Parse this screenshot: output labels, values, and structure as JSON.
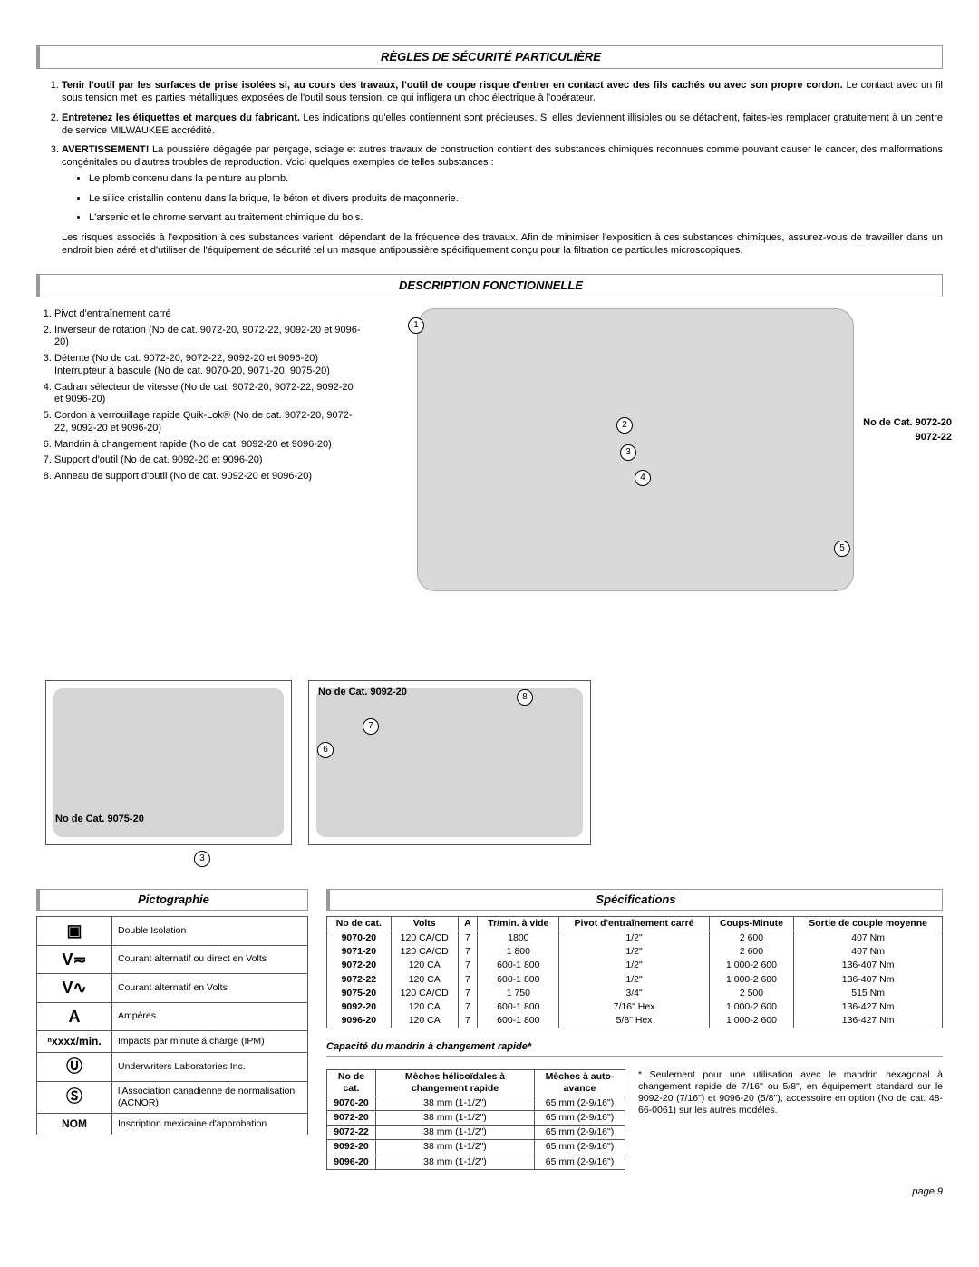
{
  "sections": {
    "safety_title": "RÈGLES DE SÉCURITÉ PARTICULIÈRE",
    "safety": [
      {
        "bold": "Tenir l'outil par les surfaces de prise isolées si, au cours des travaux, l'outil de coupe risque d'entrer en contact avec des fils cachés ou avec son propre cordon.",
        "rest": " Le contact avec un fil sous tension met les parties métalliques exposées de l'outil sous tension, ce qui infligera un choc électrique à l'opérateur."
      },
      {
        "bold": "Entretenez les étiquettes et marques du fabricant.",
        "rest": " Les indications qu'elles contiennent sont précieuses. Si elles deviennent illisibles ou se détachent, faites-les remplacer gratuitement à un centre de service MILWAUKEE accrédité."
      },
      {
        "bold": "AVERTISSEMENT!",
        "rest": " La poussière dégagée par perçage, sciage et autres travaux de construction contient des substances chimiques reconnues comme pouvant causer le cancer, des malformations congénitales ou d'autres troubles de reproduction. Voici quelques exemples de telles substances :",
        "bullets": [
          "Le plomb contenu dans la peinture au plomb.",
          "Le silice cristallin contenu dans la brique, le béton et divers produits de maçonnerie.",
          "L'arsenic et le chrome servant au traitement chimique du bois."
        ],
        "tail": "Les risques associés à l'exposition à ces substances varient, dépendant de la fréquence des travaux. Afin de minimiser l'exposition à ces substances chimiques, assurez-vous de travailler dans un endroit bien aéré et d'utiliser de l'équipement de sécurité tel un masque antipoussière spécifiquement conçu pour la filtration de particules microscopiques."
      }
    ],
    "func_title": "DESCRIPTION FONCTIONNELLE",
    "func_list": [
      "Pivot d'entraînement carré",
      "Inverseur de rotation (No de cat. 9072-20, 9072-22, 9092-20 et 9096-20)",
      "Détente (No de cat. 9072-20, 9072-22, 9092-20 et 9096-20) Interrupteur à bascule (No de cat. 9070-20, 9071-20, 9075-20)",
      "Cadran sélecteur de vitesse (No de cat. 9072-20, 9072-22, 9092-20 et 9096-20)",
      "Cordon à verrouillage rapide Quik-Lok® (No de cat. 9072-20, 9072-22, 9092-20 et 9096-20)",
      "Mandrin à changement rapide (No de cat. 9092-20 et 9096-20)",
      "Support d'outil (No de cat. 9092-20 et 9096-20)",
      "Anneau de support d'outil (No de cat. 9092-20 et 9096-20)"
    ],
    "cat_big_a": "No de Cat. 9072-20",
    "cat_big_b": "9072-22",
    "cat_9092": "No de Cat. 9092-20",
    "cat_9075": "No de Cat. 9075-20",
    "picto_title": "Pictographie",
    "picto": [
      {
        "sym": "▣",
        "desc": "Double Isolation"
      },
      {
        "sym": "V≂",
        "desc": "Courant alternatif ou direct en Volts"
      },
      {
        "sym": "V∿",
        "desc": "Courant alternatif en Volts"
      },
      {
        "sym": "A",
        "desc": "Ampères"
      },
      {
        "sym": "ⁿxxxx/min.",
        "desc": "Impacts par minute á charge (IPM)"
      },
      {
        "sym": "Ⓤ",
        "desc": "Underwriters Laboratories Inc."
      },
      {
        "sym": "Ⓢ",
        "desc": "l'Association canadienne de normalisation (ACNOR)"
      },
      {
        "sym": "NOM",
        "desc": "Inscription mexicaine d'approbation"
      }
    ],
    "spec_title": "Spécifications",
    "spec_headers": [
      "No de cat.",
      "Volts",
      "A",
      "Tr/min. à vide",
      "Pivot d'entraînement carré",
      "Coups-Minute",
      "Sortie de couple moyenne"
    ],
    "spec_rows": [
      [
        "9070-20",
        "120 CA/CD",
        "7",
        "1800",
        "1/2\"",
        "2 600",
        "407 Nm"
      ],
      [
        "9071-20",
        "120 CA/CD",
        "7",
        "1 800",
        "1/2\"",
        "2 600",
        "407 Nm"
      ],
      [
        "9072-20",
        "120 CA",
        "7",
        "600-1 800",
        "1/2\"",
        "1 000-2 600",
        "136-407 Nm"
      ],
      [
        "9072-22",
        "120 CA",
        "7",
        "600-1 800",
        "1/2\"",
        "1 000-2 600",
        "136-407 Nm"
      ],
      [
        "9075-20",
        "120 CA/CD",
        "7",
        "1 750",
        "3/4\"",
        "2 500",
        "515 Nm"
      ],
      [
        "9092-20",
        "120 CA",
        "7",
        "600-1 800",
        "7/16\" Hex",
        "1 000-2 600",
        "136-427 Nm"
      ],
      [
        "9096-20",
        "120 CA",
        "7",
        "600-1 800",
        "5/8\" Hex",
        "1 000-2 600",
        "136-427 Nm"
      ]
    ],
    "chuck_title": "Capacité du mandrin à changement rapide*",
    "chuck_headers": [
      "No de cat.",
      "Mèches hélicoïdales à changement rapide",
      "Mèches à auto-avance"
    ],
    "chuck_rows": [
      [
        "9070-20",
        "38 mm (1-1/2\")",
        "65 mm (2-9/16\")"
      ],
      [
        "9072-20",
        "38 mm (1-1/2\")",
        "65 mm (2-9/16\")"
      ],
      [
        "9072-22",
        "38 mm (1-1/2\")",
        "65 mm (2-9/16\")"
      ],
      [
        "9092-20",
        "38 mm (1-1/2\")",
        "65 mm (2-9/16\")"
      ],
      [
        "9096-20",
        "38 mm (1-1/2\")",
        "65 mm (2-9/16\")"
      ]
    ],
    "footnote": "* Seulement pour une utilisation avec le mandrin hexagonal à changement rapide de 7/16\" ou 5/8\", en équipement standard sur le 9092-20 (7/16\") et 9096-20 (5/8\"), accessoire en option (No de cat. 48-66-0061) sur les autres modèles.",
    "page": "page 9"
  }
}
